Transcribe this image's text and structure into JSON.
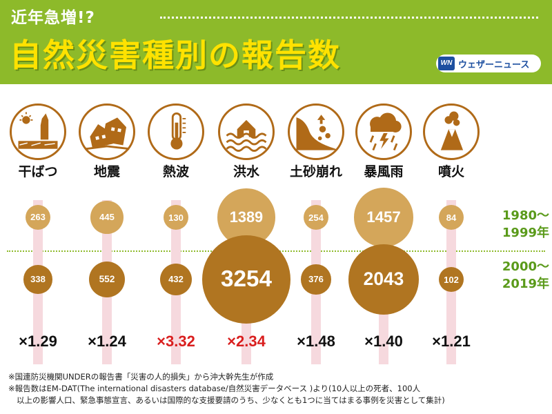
{
  "header": {
    "subtitle": "近年急増!?",
    "title": "自然災害種別の報告数",
    "logo_mark": "WN",
    "logo_text": "ウェザーニュース"
  },
  "periods": [
    "1980〜\n1999年",
    "2000〜\n2019年"
  ],
  "chart_data": {
    "type": "bubble",
    "categories": [
      "干ばつ",
      "地震",
      "熱波",
      "洪水",
      "土砂崩れ",
      "暴風雨",
      "噴火"
    ],
    "series": [
      {
        "name": "1980〜1999年",
        "values": [
          263,
          445,
          130,
          1389,
          254,
          1457,
          84
        ]
      },
      {
        "name": "2000〜2019年",
        "values": [
          338,
          552,
          432,
          3254,
          376,
          2043,
          102
        ]
      }
    ],
    "ratios": [
      "×1.29",
      "×1.24",
      "×3.32",
      "×2.34",
      "×1.48",
      "×1.40",
      "×1.21"
    ],
    "highlight_color": "#d91e1e",
    "normal_color": "#111111",
    "highlighted": [
      false,
      false,
      true,
      true,
      false,
      false,
      false
    ],
    "icons": [
      "drought-icon",
      "earthquake-icon",
      "thermometer-icon",
      "flood-icon",
      "landslide-icon",
      "storm-icon",
      "volcano-icon"
    ]
  },
  "notes": [
    "※国連防災機関UNDERの報告書「災害の人的損失」から沖大幹先生が作成",
    "※報告数はEM-DAT(The international disasters database/自然災害データベース )より(10人以上の死者、100人",
    "以上の影響人口、緊急事態宣言、あるいは国際的な支援要請のうち、少なくとも1つに当てはまる事例を災害として集計)"
  ],
  "colors": {
    "header_bg": "#8dba2a",
    "title": "#ffe200",
    "bubble_1980": "#d4a65a",
    "bubble_2000": "#b07521",
    "icon": "#b06a18",
    "period_text": "#5a9a1a"
  }
}
